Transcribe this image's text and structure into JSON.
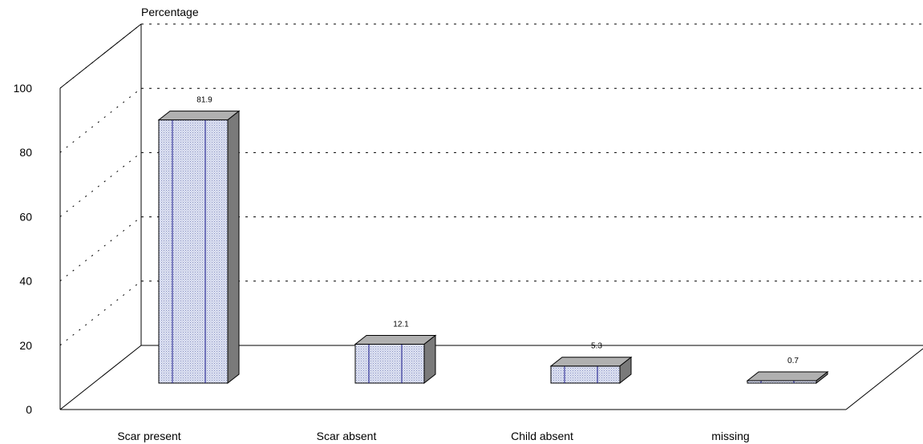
{
  "chart_data": {
    "type": "bar",
    "categories": [
      "Scar present",
      "Scar absent",
      "Child absent",
      "missing"
    ],
    "values": [
      81.9,
      12.1,
      5.3,
      0.7
    ],
    "data_labels": [
      "81.9",
      "12.1",
      "5.3",
      "0.7"
    ],
    "ylabel": "Percentage",
    "ylim": [
      0,
      100
    ],
    "yticks": [
      "0",
      "20",
      "40",
      "60",
      "80",
      "100"
    ],
    "grid": true,
    "three_d": true,
    "colors": {
      "bar_front": "#c7cde6",
      "bar_stripe": "#1a1a8c",
      "bar_top": "#b0b0b0",
      "bar_side": "#7a7a7a",
      "grid": "#000000"
    }
  }
}
